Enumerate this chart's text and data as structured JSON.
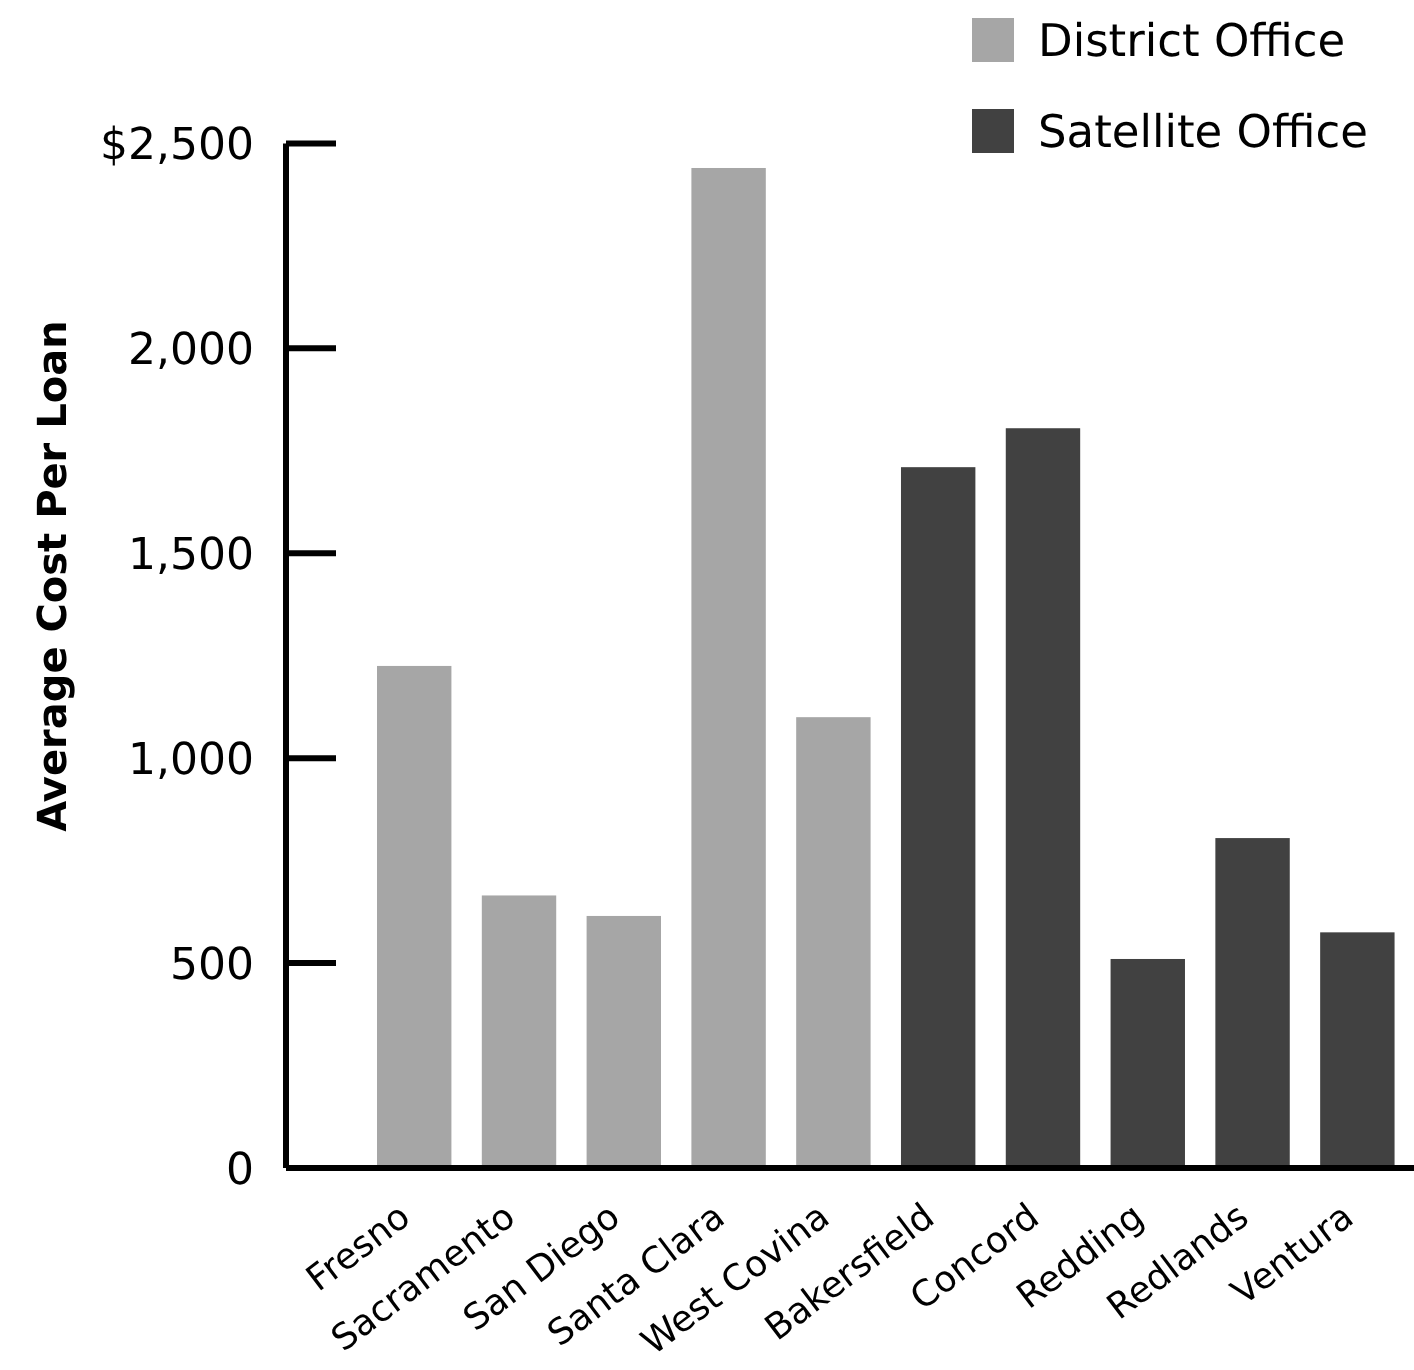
{
  "chart_data": {
    "type": "bar",
    "ylabel": "Average Cost Per Loan",
    "categories": [
      "Fresno",
      "Sacramento",
      "San Diego",
      "Santa Clara",
      "West Covina",
      "Bakersfield",
      "Concord",
      "Redding",
      "Redlands",
      "Ventura"
    ],
    "series": [
      {
        "name": "District Office",
        "color": "#a6a6a6",
        "values": [
          1225,
          665,
          615,
          2440,
          1100,
          null,
          null,
          null,
          null,
          null
        ]
      },
      {
        "name": "Satellite Office",
        "color": "#414141",
        "values": [
          null,
          null,
          null,
          null,
          null,
          1710,
          1805,
          510,
          805,
          575
        ]
      }
    ],
    "stacked": true,
    "ylim": [
      0,
      2500
    ],
    "yticks": [
      0,
      500,
      {
        "value": 1000,
        "label": "1,000"
      },
      {
        "value": 1500,
        "label": "1,500"
      },
      {
        "value": 2000,
        "label": "2,000"
      },
      {
        "value": 2500,
        "label": "$2,500"
      }
    ],
    "legend": "top right"
  }
}
